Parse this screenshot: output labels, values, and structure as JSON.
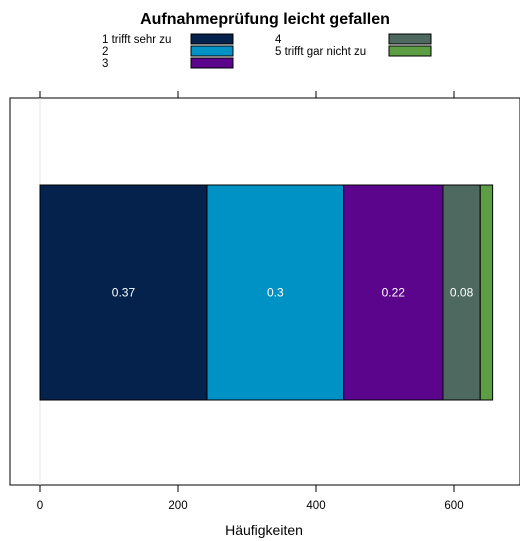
{
  "chart_data": {
    "type": "bar",
    "orientation": "horizontal",
    "stacked": true,
    "title": "Aufnahmeprüfung leicht gefallen",
    "xlabel": "Häufigkeiten",
    "ylabel": "",
    "xlim": [
      0,
      700
    ],
    "x_ticks": [
      0,
      200,
      400,
      600
    ],
    "x_tick_labels": [
      "0",
      "200",
      "400",
      "600"
    ],
    "legend_position": "top",
    "series": [
      {
        "name": "1 trifft sehr zu",
        "value": 242,
        "label": "0.37",
        "color": "#04224c"
      },
      {
        "name": "2",
        "value": 198,
        "label": "0.3",
        "color": "#0192c5"
      },
      {
        "name": "3",
        "value": 144,
        "label": "0.22",
        "color": "#5b058d"
      },
      {
        "name": "4",
        "value": 54,
        "label": "0.08",
        "color": "#4e6960"
      },
      {
        "name": "5 trifft gar nicht zu",
        "value": 18,
        "label": "",
        "color": "#5d9e44"
      }
    ]
  }
}
